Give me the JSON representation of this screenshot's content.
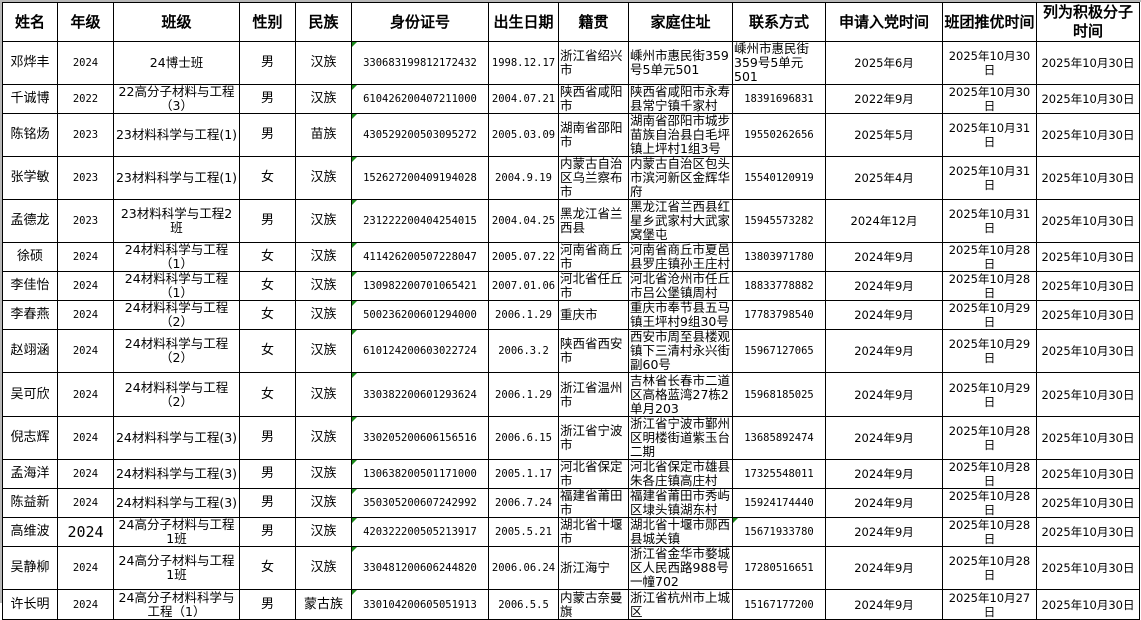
{
  "headers": [
    "姓名",
    "年级",
    "班级",
    "性别",
    "民族",
    "身份证号",
    "出生日期",
    "籍贯",
    "家庭住址",
    "联系方式",
    "申请入党时间",
    "班团推优时间",
    "列为积极分子时间"
  ],
  "rows": [
    [
      "邓烨丰",
      "2024",
      "24博士班",
      "男",
      "汉族",
      "330683199812172432",
      "1998.12.17",
      "浙江省绍兴市",
      "嵊州市惠民街359号5单元501",
      "嵊州市惠民街359号5单元501",
      "2025年6月",
      "2025年10月30日",
      "2025年10月30日"
    ],
    [
      "千诚博",
      "2022",
      "22高分子材料与工程（3）",
      "男",
      "汉族",
      "610426200407211000",
      "2004.07.21",
      "陕西省咸阳市",
      "陕西省咸阳市永寿县常宁镇千家村",
      "18391696831",
      "2022年9月",
      "2025年10月30日",
      "2025年10月30日"
    ],
    [
      "陈铭炀",
      "2023",
      "23材料科学与工程(1)",
      "男",
      "苗族",
      "430529200503095272",
      "2005.03.09",
      "湖南省邵阳市",
      "湖南省邵阳市城步苗族自治县白毛坪镇上坪村1组3号",
      "19550262656",
      "2025年5月",
      "2025年10月31日",
      "2025年10月30日"
    ],
    [
      "张学敏",
      "2023",
      "23材料科学与工程(1)",
      "女",
      "汉族",
      "152627200409194028",
      "2004.9.19",
      "内蒙古自治区乌兰察布市",
      "内蒙古自治区包头市滨河新区金辉华府",
      "15540120919",
      "2025年4月",
      "2025年10月31日",
      "2025年10月30日"
    ],
    [
      "孟德龙",
      "2023",
      "23材料科学与工程2班",
      "男",
      "汉族",
      "231222200404254015",
      "2004.04.25",
      "黑龙江省兰西县",
      "黑龙江省兰西县红星乡武家村大武家窝堡屯",
      "15945573282",
      "2024年12月",
      "2025年10月31日",
      "2025年10月30日"
    ],
    [
      "徐硕",
      "2024",
      "24材料科学与工程（1）",
      "女",
      "汉族",
      "411426200507228047",
      "2005.07.22",
      "河南省商丘市",
      "河南省商丘市夏邑县罗庄镇孙王庄村",
      "13803971780",
      "2024年9月",
      "2025年10月28日",
      "2025年10月30日"
    ],
    [
      "李佳怡",
      "2024",
      "24材料科学与工程（1）",
      "女",
      "汉族",
      "130982200701065421",
      "2007.01.06",
      "河北省任丘市",
      "河北省沧州市任丘市吕公堡镇周村",
      "18833778882",
      "2024年9月",
      "2025年10月28日",
      "2025年10月30日"
    ],
    [
      "李春燕",
      "2024",
      "24材料科学与工程（2）",
      "女",
      "汉族",
      "500236200601294000",
      "2006.1.29",
      "重庆市",
      "重庆市奉节县五马镇王坪村9组30号",
      "17783798540",
      "2024年9月",
      "2025年10月29日",
      "2025年10月30日"
    ],
    [
      "赵翊涵",
      "2024",
      "24材料科学与工程（2）",
      "女",
      "汉族",
      "610124200603022724",
      "2006.3.2",
      "陕西省西安市",
      "西安市周至县楼观镇下三清村永兴街副60号",
      "15967127065",
      "2024年9月",
      "2025年10月29日",
      "2025年10月30日"
    ],
    [
      "吴可欣",
      "2024",
      "24材料科学与工程（2）",
      "女",
      "汉族",
      "330382200601293624",
      "2006.1.29",
      "浙江省温州市",
      "吉林省长春市二道区高格蓝湾27栋2单月203",
      "15968185025",
      "2024年9月",
      "2025年10月29日",
      "2025年10月30日"
    ],
    [
      "倪志辉",
      "2024",
      "24材料科学与工程(3)",
      "男",
      "汉族",
      "330205200606156516",
      "2006.6.15",
      "浙江省宁波市",
      "浙江省宁波市鄞州区明楼街道紫玉台二期",
      "13685892474",
      "2024年9月",
      "2025年10月28日",
      "2025年10月30日"
    ],
    [
      "孟海洋",
      "2024",
      "24材料科学与工程(3)",
      "男",
      "汉族",
      "130638200501171000",
      "2005.1.17",
      "河北省保定市",
      "河北省保定市雄县朱各庄镇高庄村",
      "17325548011",
      "2024年9月",
      "2025年10月28日",
      "2025年10月30日"
    ],
    [
      "陈益新",
      "2024",
      "24材料科学与工程(3)",
      "男",
      "汉族",
      "350305200607242992",
      "2006.7.24",
      "福建省莆田市",
      "福建省莆田市秀屿区埭头镇湖东村",
      "15924174440",
      "2024年9月",
      "2025年10月28日",
      "2025年10月30日"
    ],
    [
      "高维波",
      "2024",
      "24高分子材料与工程1班",
      "男",
      "汉族",
      "420322200505213917",
      "2005.5.21",
      "湖北省十堰市",
      "湖北省十堰市郧西县城关镇",
      "15671933780",
      "2024年9月",
      "2025年10月28日",
      "2025年10月30日"
    ],
    [
      "吴静柳",
      "2024",
      "24高分子材料与工程1班",
      "女",
      "汉族",
      "330481200606244820",
      "2006.06.24",
      "浙江海宁",
      "浙江省金华市婺城区人民西路988号一幢702",
      "17280516651",
      "2024年9月",
      "2025年10月28日",
      "2025年10月30日"
    ],
    [
      "许长明",
      "2024",
      "24高分子材料科学与工程（1）",
      "男",
      "蒙古族",
      "330104200605051913",
      "2006.5.5",
      "内蒙古奈曼旗",
      "浙江省杭州市上城区",
      "15167177200",
      "2024年9月",
      "2025年10月27日",
      "2025年10月30日"
    ]
  ],
  "colors": {
    "cell_marker": "#1a8a1a",
    "grid": "#000000",
    "frame": "#b8b8b8"
  }
}
